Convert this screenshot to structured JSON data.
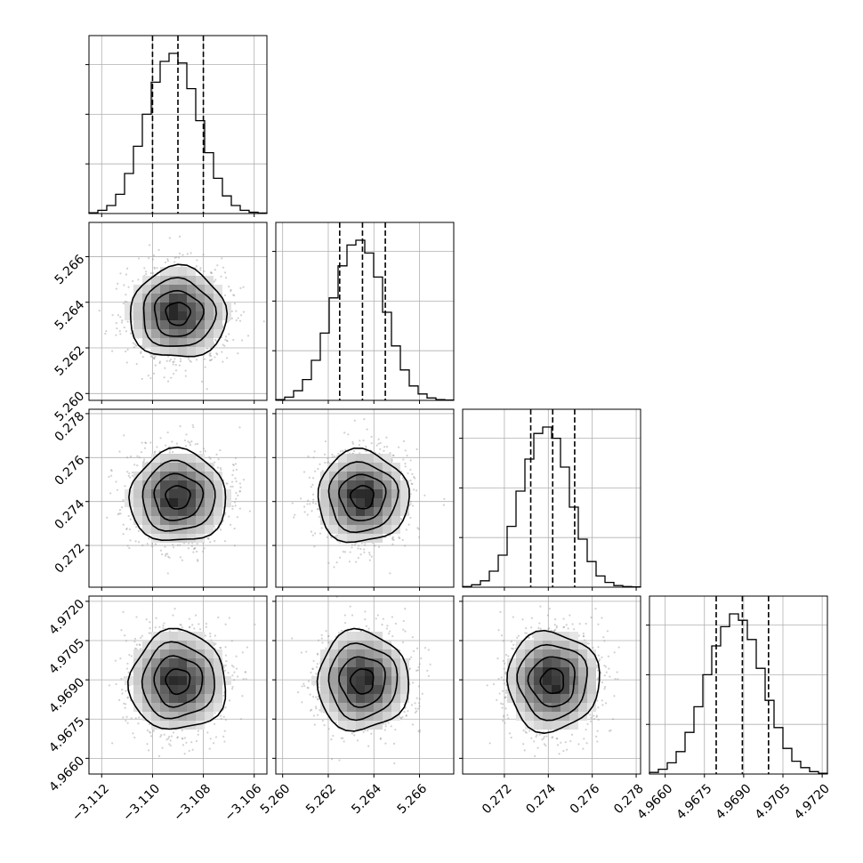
{
  "chart_data": {
    "type": "corner",
    "grid": true,
    "parameters": [
      {
        "mean": -3.109,
        "sigma": 0.00095,
        "range": [
          -3.1125,
          -3.1055
        ],
        "ticks": [
          "-3.112",
          "-3.110",
          "-3.108",
          "-3.106"
        ],
        "tick_values": [
          -3.112,
          -3.11,
          -3.108,
          -3.106
        ],
        "quantiles": [
          -3.11,
          -3.109,
          -3.108
        ]
      },
      {
        "mean": 5.2635,
        "sigma": 0.001,
        "range": [
          5.2597,
          5.2675
        ],
        "ticks": [
          "5.260",
          "5.262",
          "5.264",
          "5.266"
        ],
        "tick_values": [
          5.26,
          5.262,
          5.264,
          5.266
        ],
        "quantiles": [
          5.2625,
          5.2635,
          5.2645
        ]
      },
      {
        "mean": 0.2742,
        "sigma": 0.00105,
        "range": [
          0.2701,
          0.2782
        ],
        "ticks": [
          "0.272",
          "0.274",
          "0.276",
          "0.278"
        ],
        "tick_values": [
          0.272,
          0.274,
          0.276,
          0.278
        ],
        "quantiles": [
          0.2732,
          0.2742,
          0.2752
        ]
      },
      {
        "mean": 4.96895,
        "sigma": 0.00095,
        "range": [
          4.9654,
          4.9722
        ],
        "ticks": [
          "4.9660",
          "4.9675",
          "4.9690",
          "4.9705",
          "4.9720"
        ],
        "tick_values": [
          4.966,
          4.9675,
          4.969,
          4.9705,
          4.972
        ],
        "quantiles": [
          4.96795,
          4.96895,
          4.96995
        ]
      }
    ],
    "histograms": [
      [
        0.005,
        0.02,
        0.05,
        0.12,
        0.25,
        0.42,
        0.62,
        0.82,
        0.95,
        1.0,
        0.94,
        0.78,
        0.58,
        0.38,
        0.22,
        0.11,
        0.05,
        0.02,
        0.008,
        0.003
      ],
      [
        0.005,
        0.02,
        0.06,
        0.13,
        0.25,
        0.42,
        0.64,
        0.84,
        0.97,
        1.0,
        0.92,
        0.77,
        0.55,
        0.34,
        0.19,
        0.09,
        0.04,
        0.015,
        0.005,
        0.002
      ],
      [
        0.004,
        0.015,
        0.04,
        0.1,
        0.2,
        0.38,
        0.6,
        0.8,
        0.96,
        1.0,
        0.93,
        0.75,
        0.5,
        0.3,
        0.16,
        0.07,
        0.03,
        0.01,
        0.004,
        0.002
      ],
      [
        0.01,
        0.03,
        0.07,
        0.14,
        0.26,
        0.42,
        0.62,
        0.8,
        0.92,
        1.0,
        0.96,
        0.84,
        0.66,
        0.46,
        0.29,
        0.16,
        0.08,
        0.04,
        0.015,
        0.005
      ]
    ]
  }
}
